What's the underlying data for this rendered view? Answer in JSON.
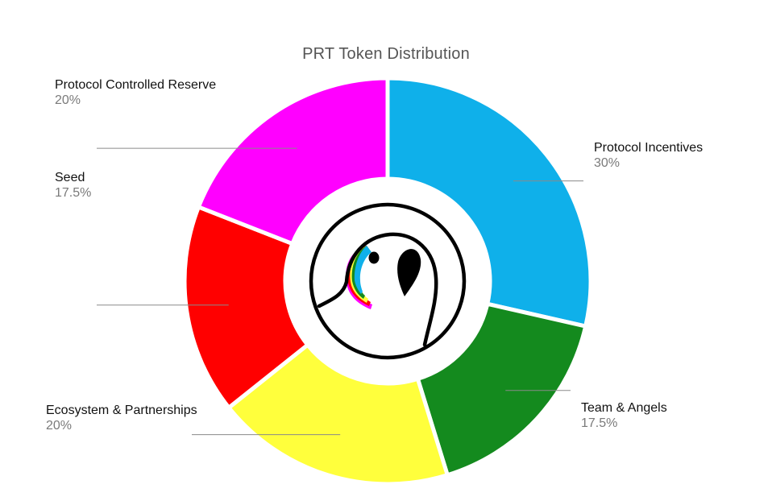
{
  "chart_data": {
    "type": "pie",
    "title": "PRT Token Distribution",
    "categories": [
      "Protocol Incentives",
      "Team & Angels",
      "Ecosystem & Partnerships",
      "Seed",
      "Protocol Controlled Reserve"
    ],
    "values": [
      30,
      17.5,
      20,
      17.5,
      20
    ],
    "value_labels": [
      "30%",
      "17.5%",
      "20%",
      "17.5%",
      "20%"
    ],
    "colors": [
      "#0fb0ea",
      "#148a1e",
      "#ffff3c",
      "#ff0000",
      "#ff00ff"
    ],
    "legend": "callouts",
    "center_logo": "parrot-icon"
  }
}
